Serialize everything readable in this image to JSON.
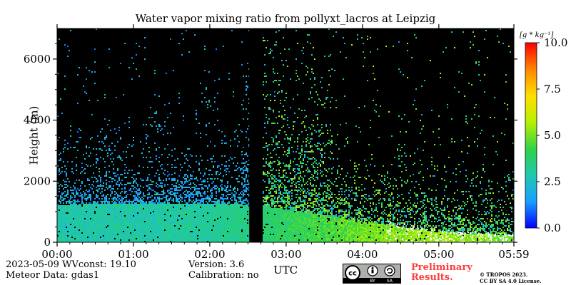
{
  "chart_data": {
    "type": "heatmap",
    "title": "Water vapor mixing ratio from pollyxt_lacros at Leipzig",
    "xlabel": "UTC",
    "ylabel": "Height (m)",
    "x_range": [
      "00:00",
      "05:59"
    ],
    "x_ticks": [
      "00:00",
      "01:00",
      "02:00",
      "03:00",
      "04:00",
      "05:00",
      "05:59"
    ],
    "y_ticks": [
      "0",
      "2000",
      "4000",
      "6000"
    ],
    "ylim": [
      0,
      7000
    ],
    "colorbar": {
      "unit_label": "[g * kg⁻¹]",
      "range": [
        0.0,
        10.0
      ],
      "ticks": [
        "10.0",
        "7.5",
        "5.0",
        "2.5",
        "0.0"
      ],
      "colormap": [
        "#0000ff",
        "#1a9dff",
        "#1fc8b4",
        "#2bd24a",
        "#b6f000",
        "#ffe000",
        "#ff8c00",
        "#ff0000"
      ]
    },
    "background_color": "#000000",
    "data_gap_utc": [
      "02:31",
      "02:41"
    ],
    "description_series": [
      {
        "name": "bulk_layer_top_m",
        "x_hours": [
          0.0,
          1.0,
          2.0,
          2.5,
          3.0,
          4.0,
          5.0,
          5.98
        ],
        "values": [
          1250,
          1300,
          1300,
          1250,
          1100,
          700,
          350,
          250
        ]
      },
      {
        "name": "typical_mixing_ratio_g_kg",
        "x_hours": [
          0.0,
          1.0,
          2.0,
          3.0,
          4.0,
          5.0,
          5.98
        ],
        "values": [
          3.0,
          3.0,
          3.2,
          4.0,
          5.0,
          5.5,
          5.0
        ]
      }
    ]
  },
  "footer": {
    "date_line": "2023-05-09    WVconst:  19.10",
    "meteor_line": "Meteor Data: gdas1",
    "version_line": "Version: 3.6",
    "calibration_line": "Calibration: no",
    "prelim_line1": "Preliminary",
    "prelim_line2": "Results.",
    "copyright_line1": "© TROPOS 2023.",
    "copyright_line2": "CC BY SA 4.0 License.",
    "cc_label": "cc",
    "by_label": "BY",
    "sa_label": "SA"
  },
  "colors": {
    "plot_bg": "#000000",
    "prelim": "#ff3b3b"
  }
}
